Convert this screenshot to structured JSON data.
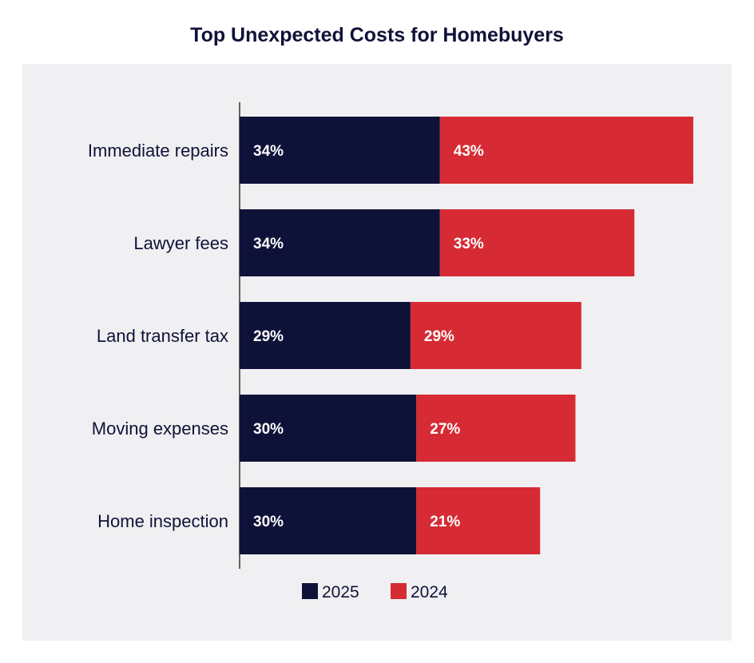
{
  "chart_data": {
    "type": "bar",
    "orientation": "horizontal",
    "stacked": true,
    "title": "Top Unexpected Costs for Homebuyers",
    "categories": [
      "Immediate repairs",
      "Lawyer fees",
      "Land transfer tax",
      "Moving expenses",
      "Home inspection"
    ],
    "series": [
      {
        "name": "2025",
        "color": "#0f1238",
        "values": [
          34,
          34,
          29,
          30,
          30
        ],
        "labels": [
          "34%",
          "34%",
          "29%",
          "30%",
          "30%"
        ]
      },
      {
        "name": "2024",
        "color": "#d62b34",
        "values": [
          43,
          33,
          29,
          27,
          21
        ],
        "labels": [
          "43%",
          "33%",
          "29%",
          "27%",
          "21%"
        ]
      }
    ],
    "xlim": [
      0,
      77
    ],
    "grid": false,
    "legend_position": "bottom"
  }
}
